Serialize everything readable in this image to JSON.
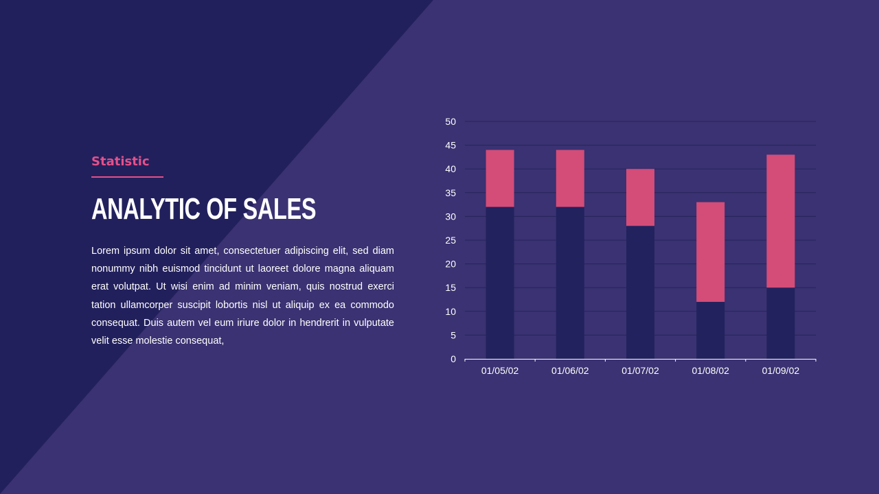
{
  "header": {
    "kicker": "Statistic",
    "title": "ANALYTIC OF SALES"
  },
  "body": {
    "paragraph": "Lorem ipsum dolor sit amet, consectetuer adipiscing elit, sed diam nonummy nibh euismod tincidunt ut laoreet dolore magna aliquam erat volutpat. Ut wisi enim ad minim veniam, quis nostrud exerci tation ullamcorper suscipit lobortis nisl ut aliquip ex ea commodo consequat. Duis autem vel eum iriure dolor in hendrerit in vulputate velit esse molestie consequat,"
  },
  "colors": {
    "background": "#3a3272",
    "triangle": "#22205c",
    "accent": "#e5508a",
    "series_base": "#22225e",
    "series_top": "#d44c78",
    "grid": "#26245a"
  },
  "chart_data": {
    "type": "bar",
    "stacked": true,
    "title": "",
    "xlabel": "",
    "ylabel": "",
    "categories": [
      "01/05/02",
      "01/06/02",
      "01/07/02",
      "01/08/02",
      "01/09/02"
    ],
    "series": [
      {
        "values": [
          32,
          32,
          28,
          12,
          15
        ]
      },
      {
        "values": [
          12,
          12,
          12,
          21,
          28
        ]
      }
    ],
    "ylim": [
      0,
      50
    ],
    "yticks": [
      "0",
      "5",
      "10",
      "15",
      "20",
      "25",
      "30",
      "35",
      "40",
      "45",
      "50"
    ],
    "grid": true,
    "legend": "none"
  }
}
